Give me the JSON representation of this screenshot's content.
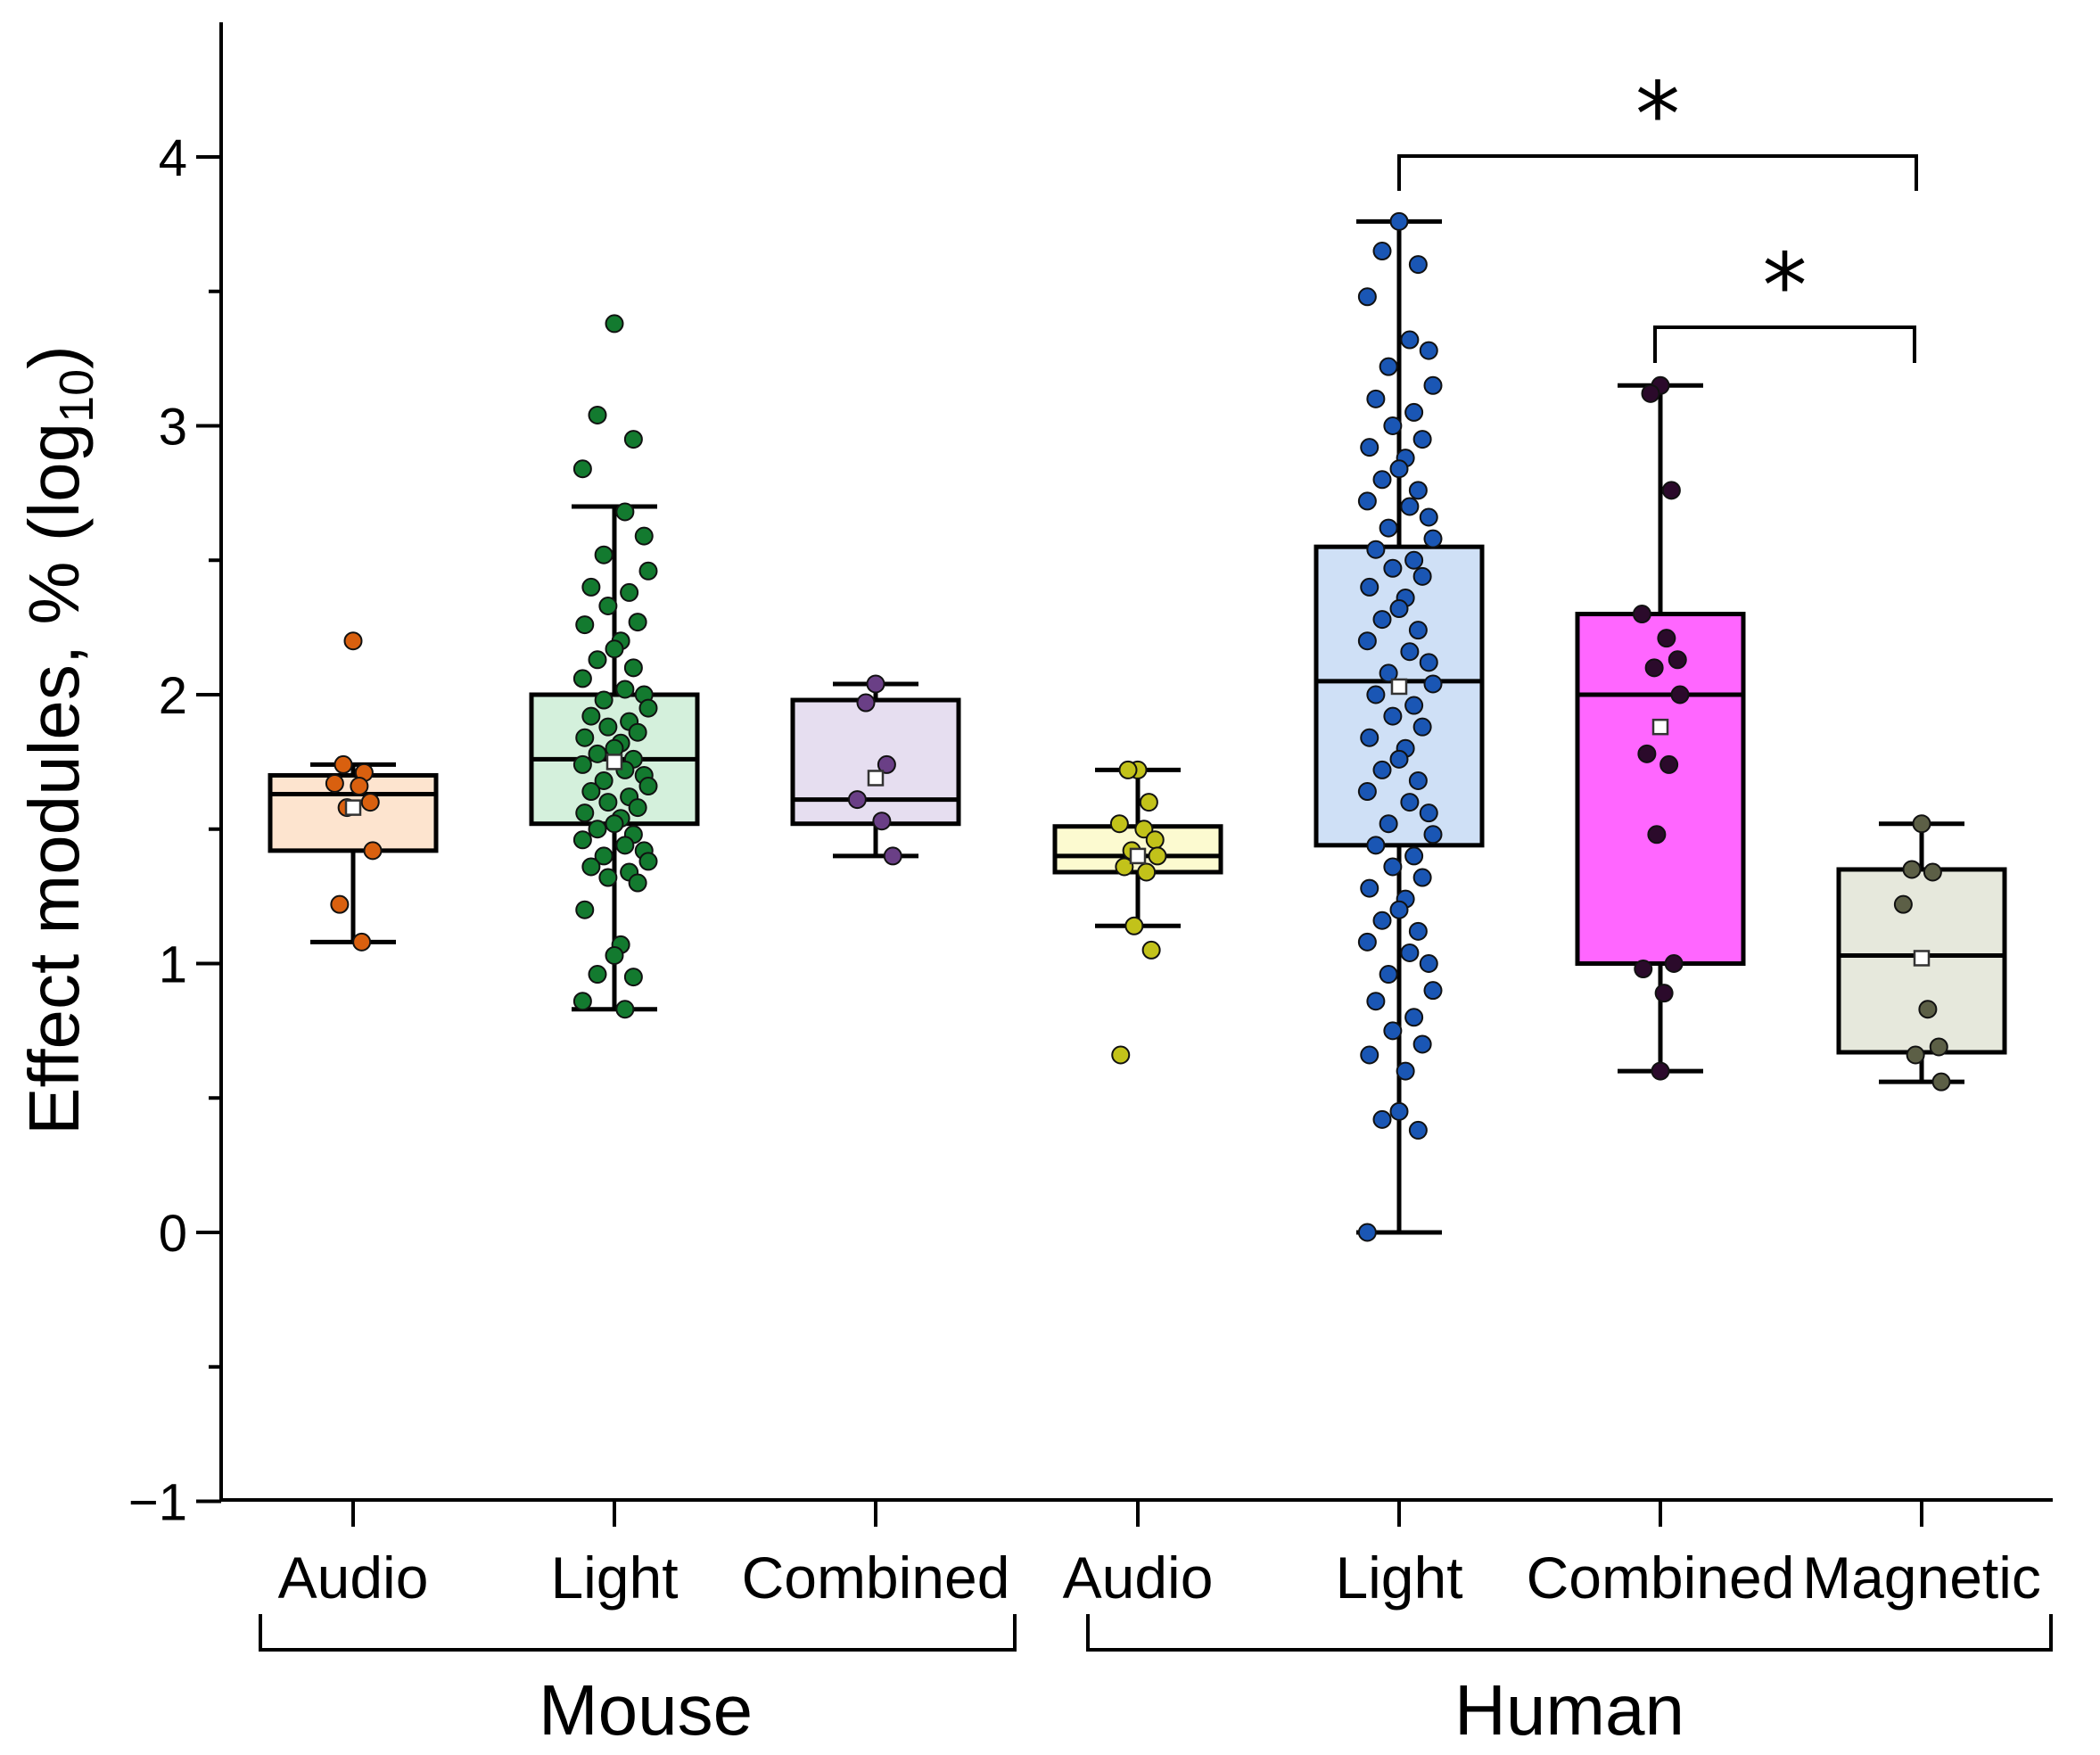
{
  "chart_data": {
    "type": "box",
    "ylabel": {
      "main": "Effect modules, % (log",
      "sub": "10",
      "end": ")"
    },
    "ylim": [
      -1,
      4.5
    ],
    "yticks": [
      -1,
      0,
      1,
      2,
      3,
      4
    ],
    "groups": [
      {
        "label": "Mouse",
        "members": [
          0,
          1,
          2
        ]
      },
      {
        "label": "Human",
        "members": [
          3,
          4,
          5,
          6
        ]
      }
    ],
    "categories": [
      "Audio",
      "Light",
      "Combined",
      "Audio",
      "Light",
      "Combined",
      "Magnetic"
    ],
    "series": [
      {
        "name": "Mouse Audio",
        "color": "#d9600f",
        "fill": "#fde4cf",
        "box": {
          "min": 1.08,
          "q1": 1.42,
          "median": 1.63,
          "q3": 1.7,
          "max": 1.74,
          "mean": 1.58
        },
        "points": [
          2.2,
          1.74,
          1.71,
          1.67,
          1.66,
          1.6,
          1.58,
          1.42,
          1.22,
          1.08
        ]
      },
      {
        "name": "Mouse Light",
        "color": "#137a2f",
        "fill": "#d4f0dc",
        "box": {
          "min": 0.83,
          "q1": 1.52,
          "median": 1.76,
          "q3": 2.0,
          "max": 2.7,
          "mean": 1.75
        },
        "points": [
          3.38,
          3.04,
          2.95,
          2.84,
          2.68,
          2.59,
          2.52,
          2.46,
          2.4,
          2.38,
          2.33,
          2.27,
          2.26,
          2.2,
          2.17,
          2.13,
          2.1,
          2.06,
          2.02,
          2.0,
          1.98,
          1.95,
          1.92,
          1.9,
          1.88,
          1.86,
          1.84,
          1.82,
          1.8,
          1.78,
          1.76,
          1.74,
          1.72,
          1.7,
          1.68,
          1.66,
          1.64,
          1.62,
          1.6,
          1.58,
          1.56,
          1.54,
          1.52,
          1.5,
          1.48,
          1.46,
          1.44,
          1.42,
          1.4,
          1.38,
          1.36,
          1.34,
          1.32,
          1.3,
          1.2,
          1.07,
          1.03,
          0.96,
          0.95,
          0.86,
          0.83
        ]
      },
      {
        "name": "Mouse Combined",
        "color": "#6a3f86",
        "fill": "#e6def0",
        "box": {
          "min": 1.4,
          "q1": 1.52,
          "median": 1.61,
          "q3": 1.98,
          "max": 2.04,
          "mean": 1.69
        },
        "points": [
          2.04,
          1.97,
          1.74,
          1.61,
          1.53,
          1.4
        ]
      },
      {
        "name": "Human Audio",
        "color": "#c2c21a",
        "fill": "#fcfad0",
        "box": {
          "min": 1.14,
          "q1": 1.34,
          "median": 1.4,
          "q3": 1.51,
          "max": 1.72,
          "mean": 1.4
        },
        "points": [
          1.72,
          1.72,
          1.6,
          1.52,
          1.5,
          1.46,
          1.42,
          1.4,
          1.36,
          1.34,
          1.14,
          1.05,
          0.66
        ]
      },
      {
        "name": "Human Light",
        "color": "#1a56b4",
        "fill": "#cfe0f6",
        "box": {
          "min": 0.0,
          "q1": 1.44,
          "median": 2.05,
          "q3": 2.55,
          "max": 3.76,
          "mean": 2.03
        },
        "points": [
          3.76,
          3.65,
          3.6,
          3.48,
          3.32,
          3.28,
          3.22,
          3.15,
          3.1,
          3.05,
          3.0,
          2.95,
          2.92,
          2.88,
          2.84,
          2.8,
          2.76,
          2.72,
          2.7,
          2.66,
          2.62,
          2.58,
          2.54,
          2.5,
          2.47,
          2.44,
          2.4,
          2.36,
          2.32,
          2.28,
          2.24,
          2.2,
          2.16,
          2.12,
          2.08,
          2.04,
          2.0,
          1.96,
          1.92,
          1.88,
          1.84,
          1.8,
          1.76,
          1.72,
          1.68,
          1.64,
          1.6,
          1.56,
          1.52,
          1.48,
          1.44,
          1.4,
          1.36,
          1.32,
          1.28,
          1.24,
          1.2,
          1.16,
          1.12,
          1.08,
          1.04,
          1.0,
          0.96,
          0.9,
          0.86,
          0.8,
          0.75,
          0.7,
          0.66,
          0.6,
          0.45,
          0.42,
          0.38,
          0.0
        ]
      },
      {
        "name": "Human Combined",
        "color": "#2b0a2b",
        "fill": "#ff66ff",
        "box": {
          "min": 0.6,
          "q1": 1.0,
          "median": 2.0,
          "q3": 2.3,
          "max": 3.15,
          "mean": 1.88
        },
        "points": [
          3.15,
          3.12,
          2.76,
          2.3,
          2.21,
          2.13,
          2.1,
          2.0,
          1.78,
          1.74,
          1.48,
          1.0,
          0.98,
          0.89,
          0.6
        ]
      },
      {
        "name": "Human Magnetic",
        "color": "#5c5f46",
        "fill": "#e6e8dc",
        "box": {
          "min": 0.56,
          "q1": 0.67,
          "median": 1.03,
          "q3": 1.35,
          "max": 1.52,
          "mean": 1.02
        },
        "points": [
          1.52,
          1.35,
          1.34,
          1.22,
          0.83,
          0.69,
          0.66,
          0.56
        ]
      }
    ],
    "significance": [
      {
        "from": 4,
        "to": 6,
        "label": "*"
      },
      {
        "from": 5,
        "to": 6,
        "label": "*"
      }
    ]
  }
}
